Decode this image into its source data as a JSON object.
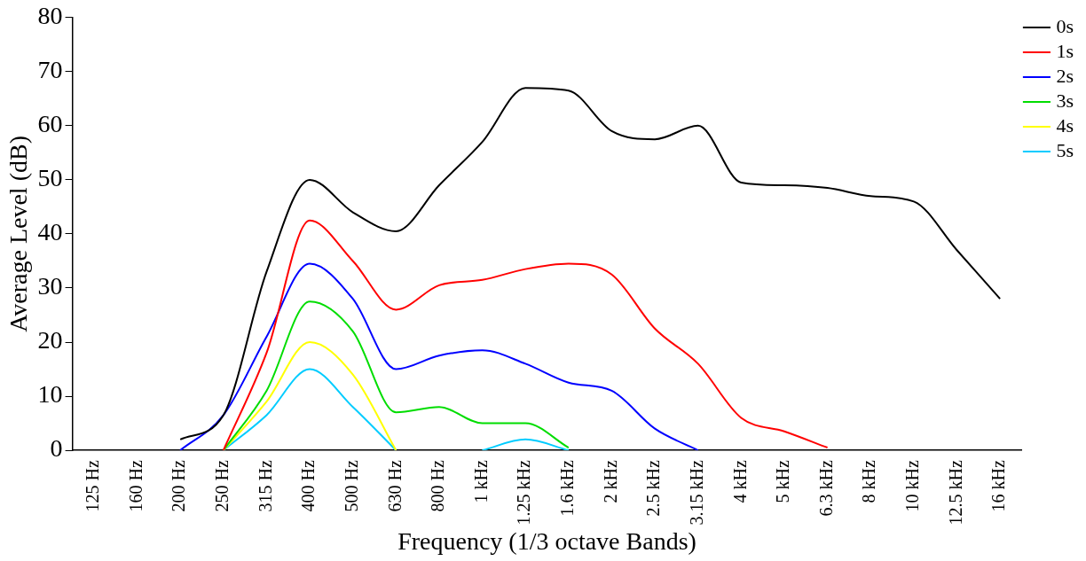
{
  "chart_data": {
    "type": "line",
    "xlabel": "Frequency (1/3 octave Bands)",
    "ylabel": "Average Level (dB)",
    "categories": [
      "125 Hz",
      "160 Hz",
      "200 Hz",
      "250 Hz",
      "315 Hz",
      "400 Hz",
      "500 Hz",
      "630 Hz",
      "800 Hz",
      "1 kHz",
      "1.25 kHz",
      "1.6 kHz",
      "2 kHz",
      "2.5 kHz",
      "3.15 kHz",
      "4 kHz",
      "5 kHz",
      "6.3 kHz",
      "8 kHz",
      "10 kHz",
      "12.5 kHz",
      "16 kHz"
    ],
    "series": [
      {
        "name": "0s",
        "color": "#000000",
        "values": [
          null,
          null,
          2,
          6.5,
          33,
          50,
          44,
          40.5,
          49,
          57,
          67,
          66.5,
          59,
          57.5,
          60,
          49.5,
          49,
          48.5,
          47,
          46,
          37,
          28
        ]
      },
      {
        "name": "1s",
        "color": "#ff0000",
        "values": [
          null,
          null,
          null,
          0,
          18,
          42.5,
          35,
          26,
          30.5,
          31.5,
          33.5,
          34.5,
          32.5,
          22.5,
          16,
          6,
          3.5,
          0.5,
          null,
          null,
          null,
          null
        ]
      },
      {
        "name": "2s",
        "color": "#0000ff",
        "values": [
          null,
          null,
          0,
          6.5,
          21,
          34.5,
          28,
          15,
          17.5,
          18.5,
          16,
          12.5,
          11,
          4,
          0,
          null,
          null,
          null,
          null,
          null,
          null,
          null
        ]
      },
      {
        "name": "3s",
        "color": "#00dd00",
        "values": [
          null,
          null,
          null,
          0,
          11,
          27.5,
          22,
          7,
          8,
          5,
          5,
          0.5,
          null,
          null,
          null,
          null,
          null,
          null,
          null,
          null,
          null,
          null
        ]
      },
      {
        "name": "4s",
        "color": "#ffff00",
        "values": [
          null,
          null,
          null,
          0,
          9,
          20,
          14,
          0,
          null,
          null,
          null,
          null,
          null,
          null,
          null,
          null,
          null,
          null,
          null,
          null,
          null,
          null
        ]
      },
      {
        "name": "5s",
        "color": "#00ccff",
        "values": [
          null,
          null,
          null,
          0,
          6.5,
          15,
          8,
          0,
          null,
          0,
          2,
          0,
          null,
          null,
          null,
          null,
          null,
          null,
          null,
          null,
          null,
          null
        ]
      }
    ],
    "ylim": [
      0,
      80
    ],
    "yticks": [
      0,
      10,
      20,
      30,
      40,
      50,
      60,
      70,
      80
    ],
    "grid": false,
    "legend": "top right",
    "marker": "none",
    "line_style": "solid"
  }
}
